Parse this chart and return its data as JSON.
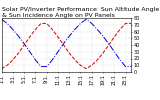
{
  "title": "Solar PV/Inverter Performance  Sun Altitude Angle & Sun Incidence Angle on PV Panels",
  "blue_label": "Sun Altitude Angle",
  "red_label": "Sun Incidence Angle",
  "x": [
    0,
    1,
    2,
    3,
    4,
    5,
    6,
    7,
    8,
    9,
    10,
    11,
    12,
    13,
    14,
    15,
    16,
    17,
    18,
    19,
    20,
    21,
    22,
    23
  ],
  "blue_y": [
    78,
    72,
    63,
    53,
    42,
    30,
    18,
    8,
    8,
    18,
    30,
    42,
    53,
    63,
    72,
    78,
    72,
    63,
    53,
    42,
    30,
    18,
    8,
    8
  ],
  "red_y": [
    5,
    10,
    18,
    28,
    40,
    52,
    63,
    72,
    72,
    63,
    52,
    40,
    28,
    18,
    10,
    5,
    10,
    18,
    28,
    40,
    52,
    63,
    72,
    72
  ],
  "ylim": [
    0,
    80
  ],
  "xlim": [
    0,
    23
  ],
  "yticks": [
    0,
    10,
    20,
    30,
    40,
    50,
    60,
    70,
    80
  ],
  "ytick_labels": [
    "0",
    "10",
    "20",
    "30",
    "40",
    "50",
    "60",
    "70",
    "80"
  ],
  "xtick_labels": [
    "1:1.",
    "3:1.",
    "5:1.",
    "7:1.",
    "9:1.",
    "11:1",
    "13:1",
    "15:1",
    "17:1",
    "19:1",
    "21:1",
    "23:1"
  ],
  "xticks": [
    0,
    2,
    4,
    6,
    8,
    10,
    12,
    14,
    16,
    18,
    20,
    22
  ],
  "bg_color": "#ffffff",
  "blue_color": "#0000cc",
  "red_color": "#cc0000",
  "title_fontsize": 4.5,
  "tick_fontsize": 3.5,
  "linewidth": 0.7,
  "grid_color": "#aaaaaa"
}
